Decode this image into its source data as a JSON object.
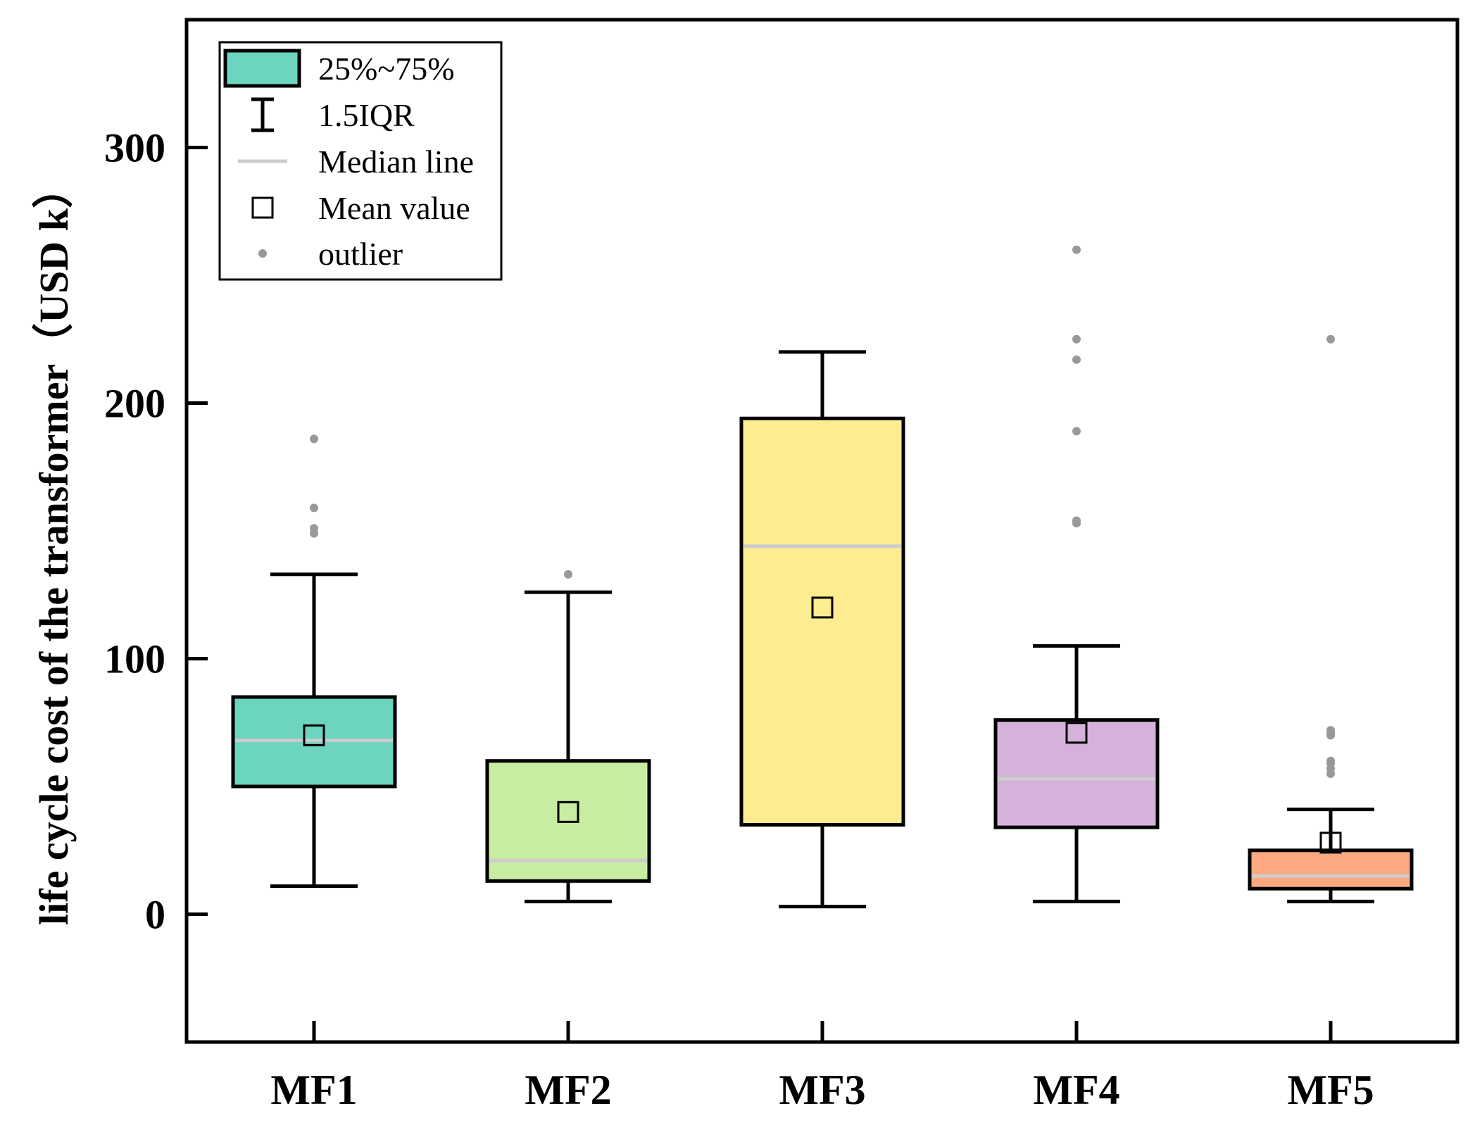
{
  "chart_data": {
    "type": "boxplot",
    "title": "",
    "xlabel": "",
    "ylabel": "life cycle cost of the transformer（USD k）",
    "ylim": [
      -50,
      350
    ],
    "yticks": [
      0,
      100,
      200,
      300
    ],
    "grid": false,
    "legend": {
      "placement": "top-left",
      "entries": [
        {
          "key": "box",
          "label": "25%~75%"
        },
        {
          "key": "whisker",
          "label": "1.5IQR"
        },
        {
          "key": "median",
          "label": "Median line"
        },
        {
          "key": "mean",
          "label": "Mean value"
        },
        {
          "key": "outlier",
          "label": "outlier"
        }
      ]
    },
    "colors": {
      "median": "#cccccc",
      "outlier": "#999999",
      "edge": "#000000"
    },
    "categories": [
      "MF1",
      "MF2",
      "MF3",
      "MF4",
      "MF5"
    ],
    "series": [
      {
        "name": "MF1",
        "color": "#6cd4bf",
        "q1": 50,
        "median": 68,
        "q3": 85,
        "whisker_low": 11,
        "whisker_high": 133,
        "mean": 70,
        "outliers": [
          149,
          151,
          159,
          186
        ]
      },
      {
        "name": "MF2",
        "color": "#c8eca2",
        "q1": 13,
        "median": 21,
        "q3": 60,
        "whisker_low": 5,
        "whisker_high": 126,
        "mean": 40,
        "outliers": [
          133
        ]
      },
      {
        "name": "MF3",
        "color": "#fdec90",
        "q1": 35,
        "median": 144,
        "q3": 194,
        "whisker_low": 3,
        "whisker_high": 220,
        "mean": 120,
        "outliers": []
      },
      {
        "name": "MF4",
        "color": "#d4b2da",
        "q1": 34,
        "median": 53,
        "q3": 76,
        "whisker_low": 5,
        "whisker_high": 105,
        "mean": 71,
        "outliers": [
          153,
          154,
          189,
          217,
          225,
          260
        ]
      },
      {
        "name": "MF5",
        "color": "#fda980",
        "q1": 10,
        "median": 15,
        "q3": 25,
        "whisker_low": 5,
        "whisker_high": 41,
        "mean": 28,
        "outliers": [
          55,
          57,
          59,
          60,
          70,
          71,
          72,
          225
        ]
      }
    ]
  }
}
